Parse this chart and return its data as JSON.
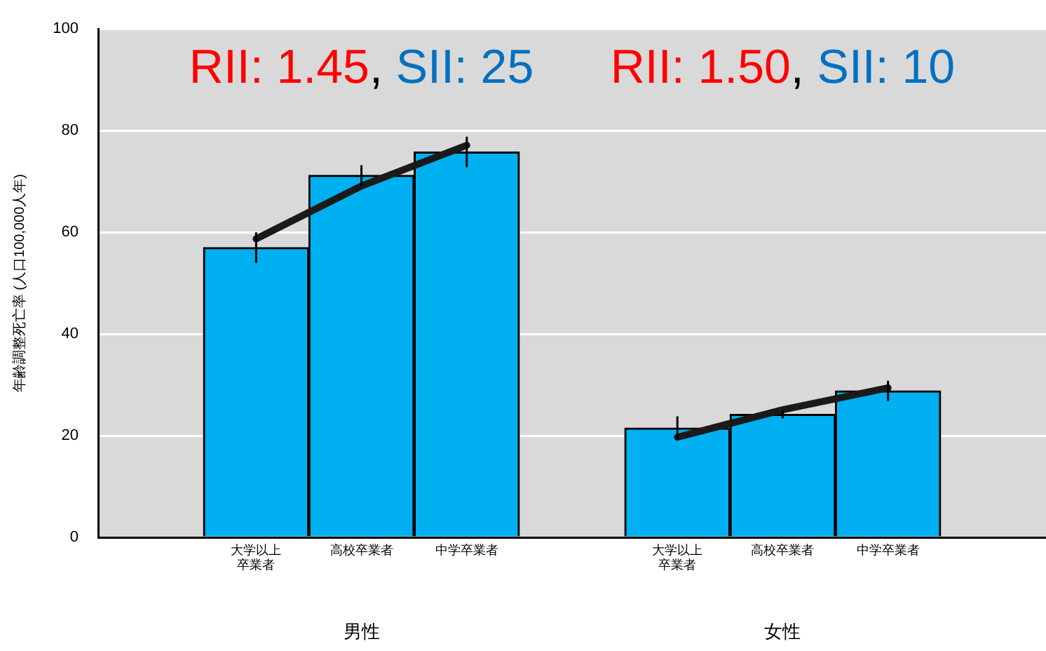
{
  "chart_data": {
    "type": "bar",
    "ylabel": "年齢調整死亡率 (人口100,000人年)",
    "categories": [
      null,
      "大学以上卒業者",
      "高校卒業者",
      "中学卒業者",
      null,
      "大学以上卒業者",
      "高校卒業者",
      "中学卒業者",
      null
    ],
    "series": [
      {
        "color": "#00b0f0",
        "values": [
          null,
          57.0,
          71.2,
          75.8,
          null,
          21.5,
          24.2,
          28.8,
          null
        ],
        "errors": [
          null,
          3,
          2,
          3,
          null,
          2.3,
          0.8,
          2,
          null
        ]
      },
      {
        "type": "line",
        "color": "#1a1a1a",
        "values": [
          null,
          58.7,
          69.1,
          77.1,
          null,
          19.7,
          25.1,
          29.4,
          null
        ]
      }
    ],
    "ylim": [
      0,
      100
    ],
    "yticks": [
      0,
      20,
      40,
      60,
      80,
      100
    ],
    "grid": "y",
    "legend": false,
    "marker": "none",
    "annotations": [
      "RII: 1.45, SII: 25",
      "RII: 1.50, SII: 10",
      "男性",
      "女性"
    ]
  }
}
